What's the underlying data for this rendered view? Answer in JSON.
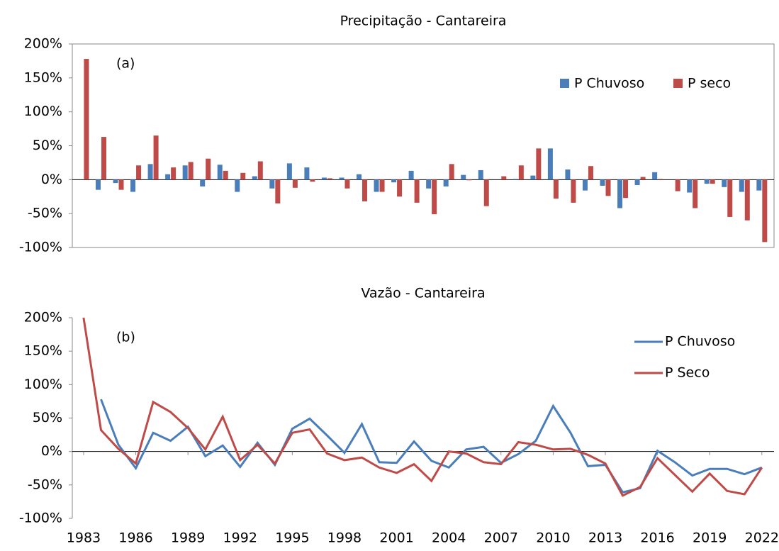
{
  "chart_data": [
    {
      "type": "bar",
      "title": "Precipitação - Cantareira",
      "annotation": "(a)",
      "x": [
        1983,
        1984,
        1985,
        1986,
        1987,
        1988,
        1989,
        1990,
        1991,
        1992,
        1993,
        1994,
        1995,
        1996,
        1997,
        1998,
        1999,
        2000,
        2001,
        2002,
        2003,
        2004,
        2005,
        2006,
        2007,
        2008,
        2009,
        2010,
        2011,
        2012,
        2013,
        2014,
        2015,
        2016,
        2017,
        2018,
        2019,
        2020,
        2021,
        2022
      ],
      "series": [
        {
          "name": "P Chuvoso",
          "color": "#4a7ebb",
          "values": [
            null,
            -15,
            -5,
            -18,
            23,
            8,
            21,
            -10,
            22,
            -18,
            5,
            -13,
            24,
            18,
            3,
            3,
            8,
            -18,
            -4,
            13,
            -13,
            -10,
            7,
            14,
            0,
            1,
            6,
            46,
            15,
            -16,
            -9,
            -42,
            -8,
            11,
            0,
            -19,
            -6,
            -11,
            -18,
            -16
          ]
        },
        {
          "name": "P seco",
          "color": "#be4b48",
          "values": [
            178,
            63,
            -15,
            21,
            65,
            18,
            26,
            31,
            13,
            10,
            27,
            -35,
            -12,
            -3,
            2,
            -13,
            -32,
            -18,
            -25,
            -34,
            -51,
            23,
            -1,
            -39,
            5,
            21,
            46,
            -28,
            -34,
            20,
            -24,
            -27,
            4,
            1,
            -17,
            -42,
            -6,
            -55,
            -60,
            -92
          ]
        }
      ],
      "ylim": [
        -100,
        200
      ],
      "yticks": [
        {
          "value": -100,
          "label": "-100%"
        },
        {
          "value": -50,
          "label": "-50%"
        },
        {
          "value": 0,
          "label": "0%"
        },
        {
          "value": 50,
          "label": "50%"
        },
        {
          "value": 100,
          "label": "100%"
        },
        {
          "value": 150,
          "label": "150%"
        },
        {
          "value": 200,
          "label": "200%"
        }
      ],
      "legend": "top-right"
    },
    {
      "type": "line",
      "title": "Vazão - Cantareira",
      "annotation": "(b)",
      "x": [
        1983,
        1984,
        1985,
        1986,
        1987,
        1988,
        1989,
        1990,
        1991,
        1992,
        1993,
        1994,
        1995,
        1996,
        1997,
        1998,
        1999,
        2000,
        2001,
        2002,
        2003,
        2004,
        2005,
        2006,
        2007,
        2008,
        2009,
        2010,
        2011,
        2012,
        2013,
        2014,
        2015,
        2016,
        2017,
        2018,
        2019,
        2020,
        2021,
        2022
      ],
      "series": [
        {
          "name": "P Chuvoso",
          "color": "#4a7ebb",
          "values": [
            null,
            78,
            10,
            -25,
            28,
            16,
            37,
            -7,
            9,
            -23,
            13,
            -20,
            34,
            49,
            24,
            -2,
            41,
            -16,
            -17,
            15,
            -14,
            -24,
            3,
            7,
            -17,
            -4,
            16,
            68,
            28,
            -22,
            -20,
            -61,
            -55,
            1,
            -16,
            -36,
            -26,
            -26,
            -34,
            -24
          ]
        },
        {
          "name": "P Seco",
          "color": "#be4b48",
          "values": [
            200,
            32,
            4,
            -18,
            74,
            59,
            35,
            3,
            52,
            -13,
            10,
            -18,
            28,
            33,
            -3,
            -13,
            -9,
            -24,
            -32,
            -19,
            -44,
            0,
            -3,
            -16,
            -19,
            14,
            10,
            3,
            4,
            -5,
            -18,
            -66,
            -53,
            -10,
            -35,
            -60,
            -33,
            -59,
            -64,
            -24
          ]
        }
      ],
      "ylim": [
        -100,
        200
      ],
      "yticks": [
        {
          "value": -100,
          "label": "-100%"
        },
        {
          "value": -50,
          "label": "-50%"
        },
        {
          "value": 0,
          "label": "0%"
        },
        {
          "value": 50,
          "label": "50%"
        },
        {
          "value": 100,
          "label": "100%"
        },
        {
          "value": 150,
          "label": "150%"
        },
        {
          "value": 200,
          "label": "200%"
        }
      ],
      "xlim": [
        1982.35,
        2022.7
      ],
      "xticks": [
        1983,
        1986,
        1989,
        1992,
        1995,
        1998,
        2001,
        2004,
        2007,
        2010,
        2013,
        2016,
        2019,
        2022
      ],
      "legend": "top-right"
    }
  ]
}
